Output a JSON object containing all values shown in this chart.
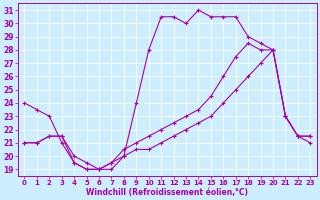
{
  "xlabel": "Windchill (Refroidissement éolien,°C)",
  "bg_color": "#cceeff",
  "line_color": "#aa00aa",
  "grid_color": "#ffffff",
  "xlim": [
    -0.5,
    23.5
  ],
  "ylim": [
    18.5,
    31.5
  ],
  "xticks": [
    0,
    1,
    2,
    3,
    4,
    5,
    6,
    7,
    8,
    9,
    10,
    11,
    12,
    13,
    14,
    15,
    16,
    17,
    18,
    19,
    20,
    21,
    22,
    23
  ],
  "yticks": [
    19,
    20,
    21,
    22,
    23,
    24,
    25,
    26,
    27,
    28,
    29,
    30,
    31
  ],
  "line1_x": [
    0,
    1,
    2,
    3,
    4,
    5,
    6,
    7,
    8,
    9,
    10,
    11,
    12,
    13,
    14,
    15,
    16,
    17,
    18,
    19,
    20,
    21,
    22,
    23
  ],
  "line1_y": [
    24,
    23.5,
    23,
    21,
    19.5,
    19,
    19,
    19.5,
    20,
    24,
    28,
    30.5,
    30.5,
    30,
    31,
    30.5,
    30.5,
    30.5,
    29,
    28.5,
    28,
    23,
    21.5,
    21
  ],
  "line2_x": [
    0,
    1,
    2,
    3,
    4,
    5,
    6,
    7,
    8,
    9,
    10,
    11,
    12,
    13,
    14,
    15,
    16,
    17,
    18,
    19,
    20,
    21,
    22,
    23
  ],
  "line2_y": [
    21,
    21,
    21.5,
    21.5,
    20,
    19.5,
    19,
    19.5,
    20.5,
    21,
    21.5,
    22,
    22.5,
    23,
    23.5,
    24.5,
    26,
    27.5,
    28.5,
    28,
    28,
    23,
    21.5,
    21.5
  ],
  "line3_x": [
    0,
    1,
    2,
    3,
    4,
    5,
    6,
    7,
    8,
    9,
    10,
    11,
    12,
    13,
    14,
    15,
    16,
    17,
    18,
    19,
    20,
    21,
    22,
    23
  ],
  "line3_y": [
    21,
    21,
    21.5,
    21.5,
    19.5,
    19,
    19,
    19,
    20,
    20.5,
    20.5,
    21,
    21.5,
    22,
    22.5,
    23,
    24,
    25,
    26,
    27,
    28,
    23,
    21.5,
    21.5
  ]
}
